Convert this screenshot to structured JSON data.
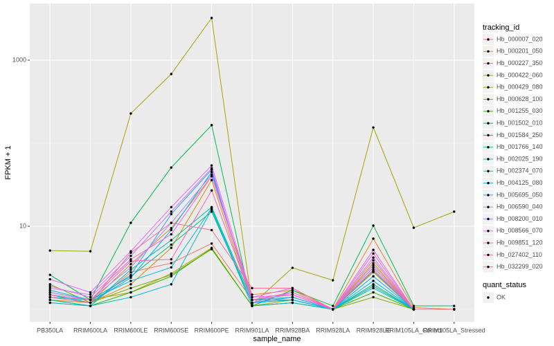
{
  "chart_data": {
    "type": "line",
    "x_label": "sample_name",
    "y_label": "FPKM + 1",
    "categories": [
      "PB350LA",
      "RRIM600LA",
      "RRIM600LE",
      "RRIM600SE",
      "RRIM600PE",
      "RRIM901LA",
      "RRIM928BA",
      "RRIM928LA",
      "RRIM928LE",
      "RRIM105LA_Control",
      "RRIM105LA_Stressed"
    ],
    "log_y": true,
    "ylim": [
      0.708,
      4820
    ],
    "yticks": [
      10,
      1000
    ],
    "minor_grid": [
      1,
      100
    ],
    "grid": true,
    "legend_title": "tracking_id",
    "legend_position": "right",
    "point_legend_title": "quant_status",
    "point_legend_label": "OK",
    "point_color": "#000000",
    "series": [
      {
        "name": "Hb_000007_020",
        "color": "#F8766D",
        "values": [
          1.2,
          1.1,
          2.8,
          3.6,
          6.2,
          1.3,
          1.5,
          1.0,
          3.0,
          1.0,
          1.0
        ]
      },
      {
        "name": "Hb_000201_050",
        "color": "#EA8331",
        "values": [
          1.5,
          1.2,
          3.5,
          9.5,
          40,
          1.5,
          1.7,
          1.0,
          7.1,
          1.05,
          1.0
        ]
      },
      {
        "name": "Hb_000227_350",
        "color": "#D89000",
        "values": [
          1.3,
          1.2,
          2.0,
          5.5,
          36,
          1.2,
          1.4,
          1.0,
          3.6,
          1.0,
          1.0
        ]
      },
      {
        "name": "Hb_000422_060",
        "color": "#C09B00",
        "values": [
          1.6,
          1.3,
          1.6,
          2.7,
          5.5,
          1.1,
          1.3,
          1.0,
          2.8,
          1.0,
          1.0
        ]
      },
      {
        "name": "Hb_000429_080",
        "color": "#A3A500",
        "values": [
          5.1,
          5.0,
          228,
          681,
          3222,
          1.14,
          3.16,
          2.24,
          155,
          9.6,
          15
        ]
      },
      {
        "name": "Hb_000628_100",
        "color": "#7CAE00",
        "values": [
          2.0,
          1.2,
          1.8,
          2.6,
          5.3,
          1.1,
          1.2,
          1.0,
          1.4,
          1.0,
          1.0
        ]
      },
      {
        "name": "Hb_001255_030",
        "color": "#39B600",
        "values": [
          1.3,
          1.1,
          1.6,
          2.5,
          5.4,
          1.1,
          1.2,
          1.0,
          1.6,
          1.0,
          1.0
        ]
      },
      {
        "name": "Hb_001502_010",
        "color": "#00BB4E",
        "values": [
          2.6,
          1.3,
          11,
          51,
          165,
          1.1,
          1.7,
          1.1,
          10.2,
          1.1,
          1.1
        ]
      },
      {
        "name": "Hb_001584_250",
        "color": "#00BF7D",
        "values": [
          1.4,
          1.3,
          2.5,
          6.0,
          15,
          1.2,
          1.3,
          1.0,
          2.0,
          1.0,
          1.0
        ]
      },
      {
        "name": "Hb_001766_140",
        "color": "#00C1A3",
        "values": [
          1.3,
          1.1,
          3.0,
          6.8,
          17,
          1.3,
          1.4,
          1.0,
          1.9,
          1.0,
          1.0
        ]
      },
      {
        "name": "Hb_002025_190",
        "color": "#00BFC4",
        "values": [
          1.2,
          1.1,
          1.4,
          2.0,
          16,
          1.1,
          1.2,
          1.0,
          1.8,
          1.0,
          1.0
        ]
      },
      {
        "name": "Hb_002374_070",
        "color": "#00BAE0",
        "values": [
          1.7,
          1.3,
          2.2,
          3.2,
          16.5,
          1.2,
          1.3,
          1.0,
          2.2,
          1.0,
          1.0
        ]
      },
      {
        "name": "Hb_004125_080",
        "color": "#00B0F6",
        "values": [
          1.5,
          1.2,
          2.4,
          9.0,
          45,
          1.3,
          1.3,
          1.0,
          2.5,
          1.0,
          1.0
        ]
      },
      {
        "name": "Hb_005695_050",
        "color": "#35A2FF",
        "values": [
          1.4,
          1.2,
          2.6,
          14,
          48,
          1.2,
          1.4,
          1.0,
          2.9,
          1.0,
          1.0
        ]
      },
      {
        "name": "Hb_006590_040",
        "color": "#9590FF",
        "values": [
          1.6,
          1.3,
          3.2,
          11,
          42,
          1.3,
          1.5,
          1.0,
          3.4,
          1.0,
          1.0
        ]
      },
      {
        "name": "Hb_008200_010",
        "color": "#C77CFF",
        "values": [
          1.8,
          1.5,
          4.4,
          15,
          50,
          1.2,
          1.6,
          1.0,
          4.2,
          1.0,
          1.0
        ]
      },
      {
        "name": "Hb_008566_070",
        "color": "#E76BF3",
        "values": [
          2.3,
          1.6,
          5.0,
          17,
          54,
          1.4,
          1.8,
          1.0,
          5.2,
          1.0,
          1.0
        ]
      },
      {
        "name": "Hb_009851_120",
        "color": "#FA62DB",
        "values": [
          1.9,
          1.4,
          4.0,
          8.0,
          40,
          1.4,
          1.5,
          1.0,
          4.7,
          1.0,
          1.0
        ]
      },
      {
        "name": "Hb_027402_110",
        "color": "#FF62BC",
        "values": [
          1.5,
          1.3,
          3.8,
          4.0,
          27,
          1.3,
          1.6,
          1.0,
          3.2,
          1.0,
          1.0
        ]
      },
      {
        "name": "Hb_032299_020",
        "color": "#FF6C91",
        "values": [
          1.4,
          1.2,
          4.8,
          11,
          9.0,
          1.8,
          1.8,
          1.0,
          3.9,
          1.0,
          1.0
        ]
      }
    ]
  }
}
